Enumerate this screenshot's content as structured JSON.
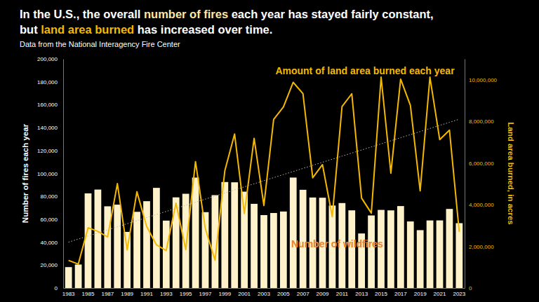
{
  "chart_data": {
    "type": "bar",
    "title": [
      [
        {
          "text": "In the U.S., the overall ",
          "color": "#ffffff"
        },
        {
          "text": "number of fires",
          "color": "#ffe7a3"
        },
        {
          "text": " each year has stayed fairly constant,",
          "color": "#ffffff"
        }
      ],
      [
        {
          "text": "but ",
          "color": "#ffffff"
        },
        {
          "text": "land area burned",
          "color": "#f5b800"
        },
        {
          "text": " has increased over time.",
          "color": "#ffffff"
        }
      ]
    ],
    "subtitle": "Data from the National Interagency Fire Center",
    "y_label": "Number of fires each year",
    "y2_label": "Land area burned, in acres",
    "categories": [
      "1983",
      null,
      "1985",
      null,
      "1987",
      null,
      "1989",
      null,
      "1991",
      null,
      "1993",
      null,
      "1995",
      null,
      "1997",
      null,
      "1999",
      null,
      "2001",
      null,
      "2003",
      null,
      "2005",
      null,
      "2007",
      null,
      "2009",
      null,
      "2011",
      null,
      "2013",
      null,
      "2015",
      null,
      "2017",
      null,
      "2019",
      null,
      "2021",
      null,
      "2023"
    ],
    "series": [
      {
        "name": "Number of wildfires",
        "type": "bar",
        "color": "#fff1c9",
        "values": [
          18229,
          20493,
          82591,
          85907,
          71300,
          72750,
          48949,
          66481,
          75754,
          87394,
          58810,
          79107,
          82234,
          96363,
          66196,
          81043,
          92487,
          92250,
          84079,
          73457,
          63629,
          65461,
          66753,
          96385,
          85705,
          78979,
          78792,
          71971,
          74126,
          67774,
          47579,
          63312,
          68151,
          67743,
          71499,
          58083,
          50477,
          58950,
          58985,
          68988,
          56580
        ]
      },
      {
        "type": "line",
        "axis": "y2",
        "color": "#bbbbbb",
        "line_style": "dotted",
        "values": [
          2200000,
          2347500,
          2495000,
          2642500,
          2790000,
          2937500,
          3085000,
          3232500,
          3380000,
          3527500,
          3675000,
          3822500,
          3970000,
          4117500,
          4265000,
          4412500,
          4560000,
          4707500,
          4855000,
          5002500,
          5150000,
          5297500,
          5445000,
          5592500,
          5740000,
          5887500,
          6035000,
          6182500,
          6330000,
          6477500,
          6625000,
          6772500,
          6920000,
          7067500,
          7215000,
          7362500,
          7510000,
          7657500,
          7805000,
          7952500,
          8100000
        ]
      },
      {
        "name": "Amount of land area burned each year",
        "type": "line",
        "axis": "y2",
        "color": "#f5b800",
        "line_style": "solid",
        "values": [
          1323666,
          1148409,
          2896147,
          2719162,
          2447296,
          5009290,
          1827310,
          4621621,
          2953578,
          2069929,
          1797574,
          4073579,
          1840546,
          6065998,
          2856959,
          1329704,
          5626093,
          7393493,
          3570911,
          7184712,
          3960842,
          8097880,
          8689389,
          9873745,
          9328045,
          5292468,
          5921786,
          3422724,
          8711367,
          9326238,
          4319546,
          3595613,
          10125149,
          5509995,
          10026086,
          8767492,
          4664364,
          10122336,
          7125643,
          7577183,
          2693910
        ]
      }
    ],
    "ylim": [
      0,
      200000
    ],
    "yticks": [
      0,
      {
        "value": 20000,
        "label": "20,000"
      },
      {
        "value": 40000,
        "label": "40,000"
      },
      {
        "value": 60000,
        "label": "60,000"
      },
      {
        "value": 80000,
        "label": "80,000"
      },
      {
        "value": 100000,
        "label": "100,000"
      },
      {
        "value": 120000,
        "label": "120,000"
      },
      {
        "value": 140000,
        "label": "140,000"
      },
      {
        "value": 160000,
        "label": "160,000"
      },
      {
        "value": 180000,
        "label": "180,000"
      },
      {
        "value": 200000,
        "label": "200,000"
      }
    ],
    "y2lim": [
      0,
      11000000
    ],
    "y2ticks": [
      0,
      {
        "value": 2000000,
        "label": "2,000,000"
      },
      {
        "value": 4000000,
        "label": "4,000,000"
      },
      {
        "value": 6000000,
        "label": "6,000,000"
      },
      {
        "value": 8000000,
        "label": "8,000,000"
      },
      {
        "value": 10000000,
        "label": "10,000,000"
      }
    ],
    "grid": false
  }
}
